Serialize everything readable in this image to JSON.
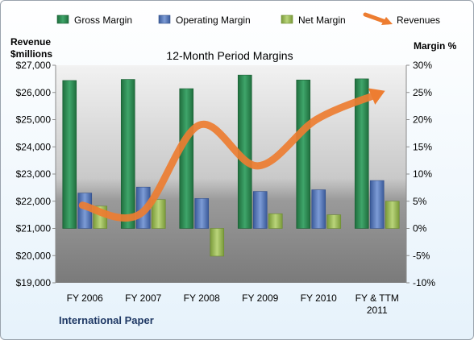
{
  "chart_data": {
    "type": "bar",
    "title": "12-Month Period Margins",
    "footer": "International Paper",
    "left_axis": {
      "label_line1": "Revenue",
      "label_line2": "$millions",
      "range": [
        19000,
        27000
      ],
      "ticks": [
        "$19,000",
        "$20,000",
        "$21,000",
        "$22,000",
        "$23,000",
        "$24,000",
        "$25,000",
        "$26,000",
        "$27,000"
      ]
    },
    "right_axis": {
      "label": "Margin %",
      "range": [
        -10,
        30
      ],
      "ticks": [
        "-10%",
        "-5%",
        "0%",
        "5%",
        "10%",
        "15%",
        "20%",
        "25%",
        "30%"
      ]
    },
    "categories": [
      [
        "FY 2006"
      ],
      [
        "FY 2007"
      ],
      [
        "FY 2008"
      ],
      [
        "FY 2009"
      ],
      [
        "FY 2010"
      ],
      [
        "FY & TTM",
        "2011"
      ]
    ],
    "series": [
      {
        "name": "Gross Margin",
        "kind": "bar",
        "axis": "right",
        "color": "#2e8b57",
        "values": [
          27.2,
          27.4,
          25.7,
          28.2,
          27.3,
          27.5
        ]
      },
      {
        "name": "Operating Margin",
        "kind": "bar",
        "axis": "right",
        "color": "#4f71b9",
        "values": [
          6.5,
          7.6,
          5.5,
          6.8,
          7.1,
          8.8
        ]
      },
      {
        "name": "Net Margin",
        "kind": "bar",
        "axis": "right",
        "color": "#9bbb59",
        "values": [
          4.1,
          5.3,
          -5.1,
          2.7,
          2.5,
          5.0
        ]
      },
      {
        "name": "Revenues",
        "kind": "line",
        "axis": "left",
        "color": "#ed7d31",
        "values": [
          21850,
          21550,
          24800,
          23300,
          25000,
          25900
        ]
      }
    ],
    "grid": false,
    "legend_position": "top"
  }
}
